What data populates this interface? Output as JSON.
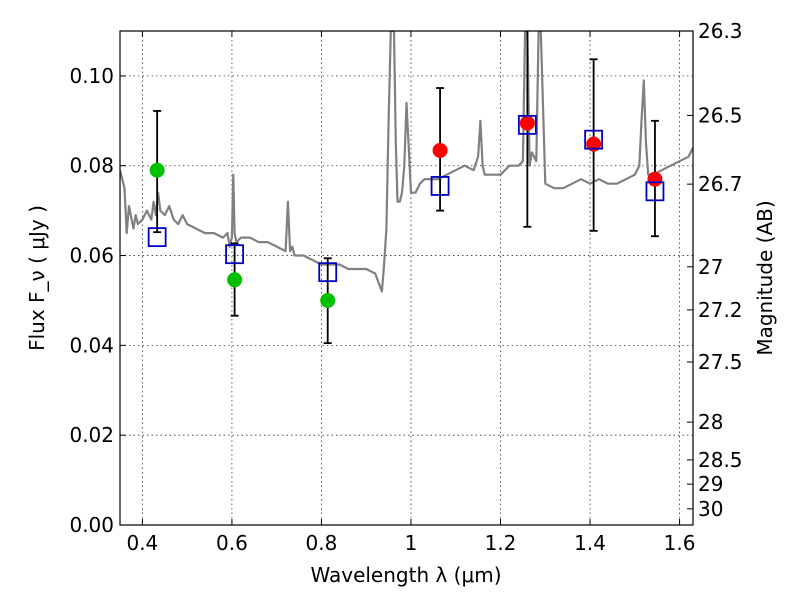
{
  "chart_data": {
    "type": "scatter",
    "title": "",
    "xlabel": "Wavelength  λ (μm)",
    "ylabel": "Flux  F_ν  ( μJy )",
    "y2label": "Magnitude (AB)",
    "xlim": [
      0.35,
      1.63
    ],
    "ylim": [
      0.0,
      0.11
    ],
    "grid": true,
    "x_ticks": [
      0.4,
      0.6,
      0.8,
      1.0,
      1.2,
      1.4,
      1.6
    ],
    "x_tick_labels": [
      "0.4",
      "0.6",
      "0.8",
      "1",
      "1.2",
      "1.4",
      "1.6"
    ],
    "y_ticks": [
      0.0,
      0.02,
      0.04,
      0.06,
      0.08,
      0.1
    ],
    "y_tick_labels": [
      "0.00",
      "0.02",
      "0.04",
      "0.06",
      "0.08",
      "0.10"
    ],
    "right_ticks": [
      {
        "label": "26.3",
        "flux": 0.11
      },
      {
        "label": "26.5",
        "flux": 0.0912
      },
      {
        "label": "26.7",
        "flux": 0.0759
      },
      {
        "label": "27",
        "flux": 0.0575
      },
      {
        "label": "27.2",
        "flux": 0.0479
      },
      {
        "label": "27.5",
        "flux": 0.0363
      },
      {
        "label": "28",
        "flux": 0.0229
      },
      {
        "label": "28.5",
        "flux": 0.0145
      },
      {
        "label": "29",
        "flux": 0.0091
      },
      {
        "label": "30",
        "flux": 0.0036
      }
    ],
    "series": [
      {
        "kind": "model_spectrum",
        "color": "#808080",
        "x": [
          0.35,
          0.36,
          0.365,
          0.37,
          0.38,
          0.385,
          0.39,
          0.4,
          0.41,
          0.42,
          0.425,
          0.43,
          0.435,
          0.44,
          0.45,
          0.46,
          0.47,
          0.48,
          0.49,
          0.5,
          0.52,
          0.54,
          0.56,
          0.58,
          0.59,
          0.595,
          0.6,
          0.603,
          0.606,
          0.61,
          0.62,
          0.64,
          0.66,
          0.68,
          0.7,
          0.72,
          0.725,
          0.73,
          0.735,
          0.74,
          0.76,
          0.78,
          0.8,
          0.82,
          0.84,
          0.86,
          0.88,
          0.9,
          0.92,
          0.935,
          0.94,
          0.945,
          0.95,
          0.955,
          0.958,
          0.962,
          0.966,
          0.97,
          0.975,
          0.98,
          0.985,
          0.99,
          1.0,
          1.01,
          1.02,
          1.03,
          1.04,
          1.05,
          1.06,
          1.08,
          1.1,
          1.12,
          1.14,
          1.15,
          1.155,
          1.16,
          1.165,
          1.17,
          1.18,
          1.2,
          1.22,
          1.24,
          1.25,
          1.255,
          1.26,
          1.265,
          1.27,
          1.28,
          1.285,
          1.29,
          1.3,
          1.32,
          1.34,
          1.36,
          1.38,
          1.4,
          1.42,
          1.44,
          1.46,
          1.48,
          1.5,
          1.51,
          1.515,
          1.52,
          1.525,
          1.53,
          1.54,
          1.56,
          1.58,
          1.6,
          1.62,
          1.63
        ],
        "y": [
          0.079,
          0.075,
          0.065,
          0.071,
          0.066,
          0.069,
          0.067,
          0.068,
          0.07,
          0.068,
          0.072,
          0.069,
          0.074,
          0.07,
          0.069,
          0.071,
          0.068,
          0.067,
          0.069,
          0.067,
          0.066,
          0.065,
          0.065,
          0.064,
          0.065,
          0.062,
          0.064,
          0.078,
          0.065,
          0.063,
          0.064,
          0.064,
          0.063,
          0.063,
          0.062,
          0.061,
          0.072,
          0.061,
          0.062,
          0.06,
          0.06,
          0.059,
          0.058,
          0.058,
          0.058,
          0.057,
          0.057,
          0.057,
          0.056,
          0.052,
          0.058,
          0.066,
          0.09,
          0.11,
          0.11,
          0.11,
          0.085,
          0.072,
          0.072,
          0.074,
          0.08,
          0.094,
          0.074,
          0.074,
          0.076,
          0.077,
          0.077,
          0.077,
          0.077,
          0.078,
          0.079,
          0.08,
          0.079,
          0.082,
          0.09,
          0.08,
          0.078,
          0.078,
          0.078,
          0.078,
          0.08,
          0.08,
          0.081,
          0.11,
          0.11,
          0.08,
          0.083,
          0.081,
          0.11,
          0.11,
          0.076,
          0.075,
          0.075,
          0.076,
          0.077,
          0.076,
          0.077,
          0.076,
          0.076,
          0.077,
          0.078,
          0.08,
          0.09,
          0.099,
          0.085,
          0.078,
          0.078,
          0.079,
          0.08,
          0.081,
          0.082,
          0.084
        ]
      },
      {
        "kind": "observed_green",
        "color": "#00c000",
        "points": [
          {
            "x": 0.433,
            "y": 0.079,
            "err_lo": 0.0652,
            "err_hi": 0.0922
          },
          {
            "x": 0.606,
            "y": 0.0546,
            "err_lo": 0.0466,
            "err_hi": 0.0627
          },
          {
            "x": 0.814,
            "y": 0.05,
            "err_lo": 0.0405,
            "err_hi": 0.0594
          }
        ]
      },
      {
        "kind": "observed_red",
        "color": "#ff0000",
        "points": [
          {
            "x": 1.065,
            "y": 0.0834,
            "err_lo": 0.07,
            "err_hi": 0.0973
          },
          {
            "x": 1.26,
            "y": 0.0895,
            "err_lo": 0.0664,
            "err_hi": 0.1127
          },
          {
            "x": 1.408,
            "y": 0.0848,
            "err_lo": 0.0655,
            "err_hi": 0.1037
          },
          {
            "x": 1.545,
            "y": 0.077,
            "err_lo": 0.0643,
            "err_hi": 0.09
          }
        ]
      },
      {
        "kind": "model_photometry",
        "color": "#0000c0",
        "points": [
          {
            "x": 0.433,
            "y": 0.0641
          },
          {
            "x": 0.606,
            "y": 0.0603
          },
          {
            "x": 0.814,
            "y": 0.0563
          },
          {
            "x": 1.065,
            "y": 0.0755
          },
          {
            "x": 1.26,
            "y": 0.0891
          },
          {
            "x": 1.408,
            "y": 0.0858
          },
          {
            "x": 1.545,
            "y": 0.0743
          }
        ]
      }
    ]
  }
}
